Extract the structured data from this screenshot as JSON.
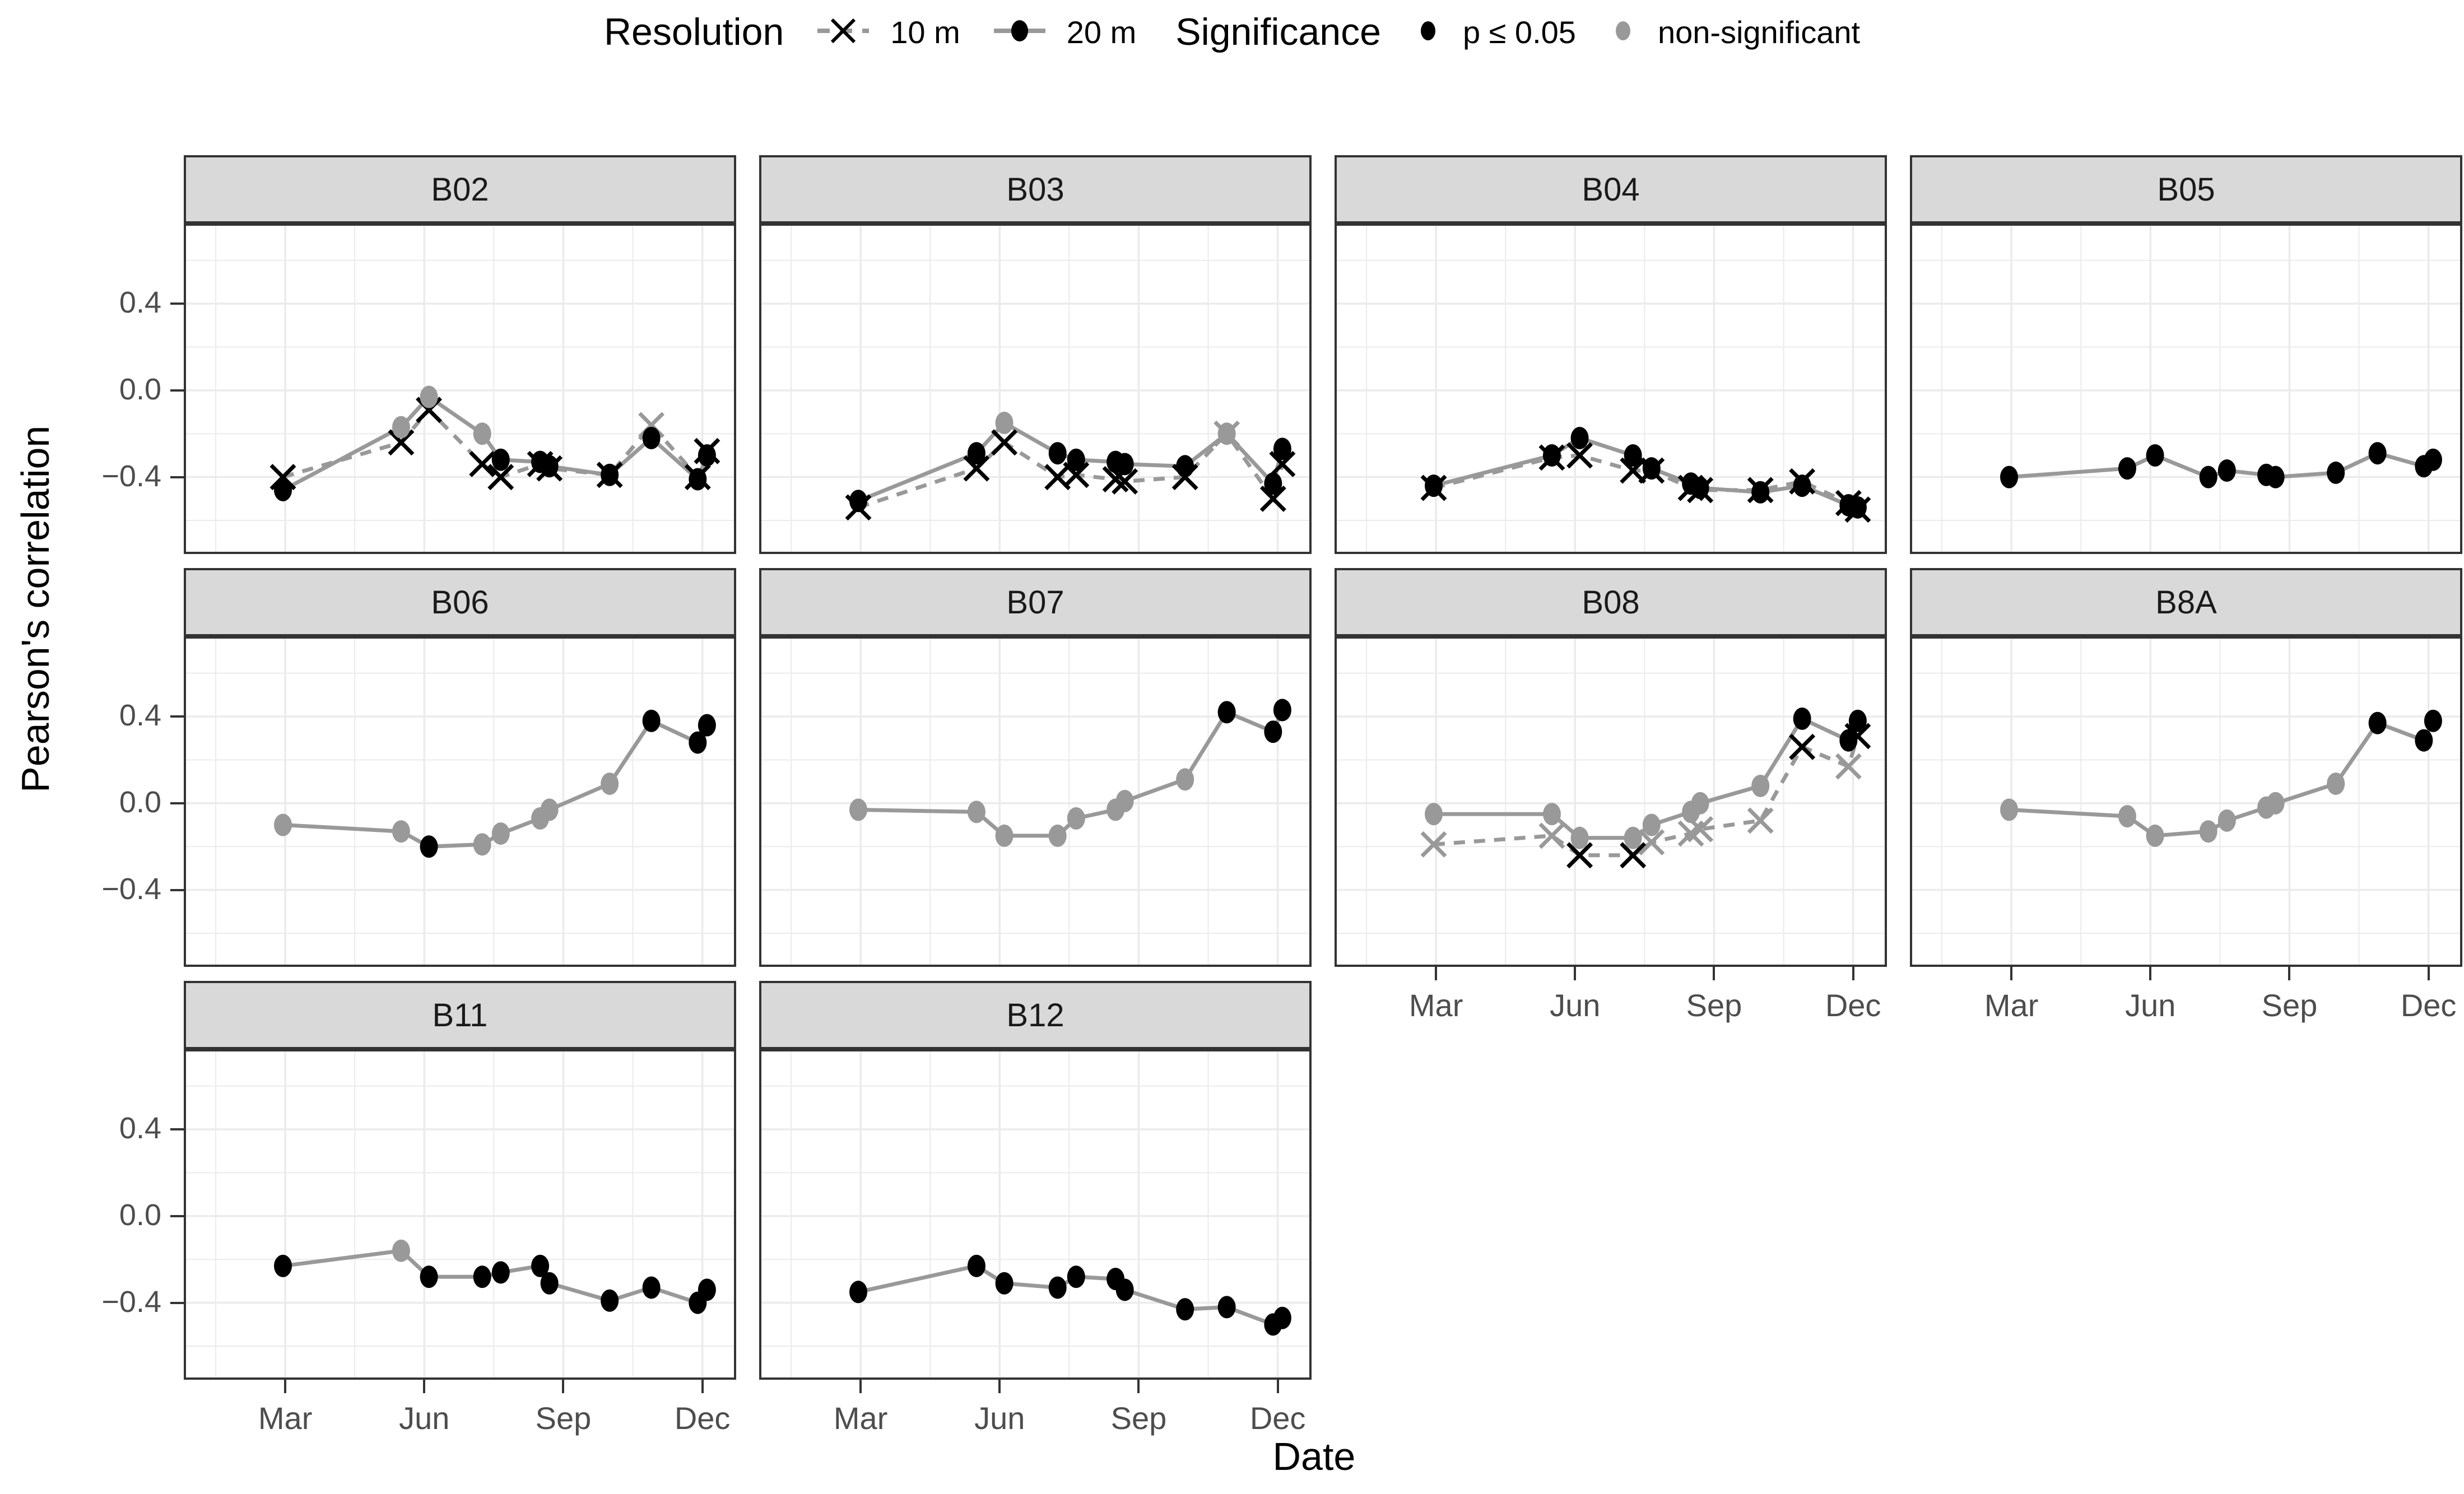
{
  "legend": {
    "resolution_title": "Resolution",
    "resolution_items": [
      {
        "label": "10 m",
        "linetype": "dashed",
        "marker": "x"
      },
      {
        "label": "20 m",
        "linetype": "solid",
        "marker": "dot"
      }
    ],
    "significance_title": "Significance",
    "significance_items": [
      {
        "label": "p ≤ 0.05",
        "color": "#000000"
      },
      {
        "label": "non-significant",
        "color": "#999999"
      }
    ]
  },
  "axes": {
    "x_title": "Date",
    "y_title": "Pearson's correlation",
    "x_ticks": [
      {
        "month": 3,
        "label": "Mar"
      },
      {
        "month": 6,
        "label": "Jun"
      },
      {
        "month": 9,
        "label": "Sep"
      },
      {
        "month": 12,
        "label": "Dec"
      }
    ],
    "y_ticks": [
      {
        "value": 0.4,
        "label": "0.4"
      },
      {
        "value": 0.0,
        "label": "0.0"
      },
      {
        "value": -0.4,
        "label": "−0.4"
      }
    ]
  },
  "colors": {
    "significant": "#000000",
    "non_significant": "#999999",
    "line": "#999999",
    "grid": "#ebebeb",
    "strip_fill": "#d9d9d9",
    "panel_border": "#333333",
    "tick_text": "#4d4d4d"
  },
  "chart_data": {
    "type": "line",
    "title": "",
    "xlabel": "Date",
    "ylabel": "Pearson's correlation",
    "xlim_months": [
      0.81,
      12.73
    ],
    "ylim": [
      -0.755,
      0.77
    ],
    "x_major_months": [
      3,
      6,
      9,
      12
    ],
    "x_minor_months": [
      1.5,
      4.5,
      7.5,
      10.5
    ],
    "y_major": [
      0.4,
      0.0,
      -0.4
    ],
    "y_minor": [
      0.6,
      0.2,
      -0.2,
      -0.6
    ],
    "grid": true,
    "legend_position": "top",
    "x_months": [
      2.95,
      5.5,
      6.1,
      7.25,
      7.65,
      8.5,
      8.7,
      10.0,
      10.9,
      11.9,
      12.1
    ],
    "facets": [
      {
        "label": "B02",
        "row": 0,
        "col": 0,
        "show_x_axis": false,
        "series": [
          {
            "name": "10 m",
            "linetype": "dashed",
            "marker": "x",
            "y": [
              -0.4,
              -0.24,
              -0.09,
              -0.34,
              -0.4,
              -0.34,
              -0.36,
              -0.39,
              -0.16,
              -0.4,
              -0.28
            ],
            "sig": [
              1,
              1,
              1,
              1,
              1,
              1,
              1,
              1,
              0,
              1,
              1
            ]
          },
          {
            "name": "20 m",
            "linetype": "solid",
            "marker": "dot",
            "y": [
              -0.46,
              -0.17,
              -0.03,
              -0.2,
              -0.32,
              -0.33,
              -0.35,
              -0.39,
              -0.22,
              -0.41,
              -0.3
            ],
            "sig": [
              1,
              0,
              0,
              0,
              1,
              1,
              1,
              1,
              1,
              1,
              1
            ]
          }
        ]
      },
      {
        "label": "B03",
        "row": 0,
        "col": 1,
        "show_x_axis": false,
        "series": [
          {
            "name": "10 m",
            "linetype": "dashed",
            "marker": "x",
            "y": [
              -0.54,
              -0.36,
              -0.24,
              -0.4,
              -0.39,
              -0.41,
              -0.42,
              -0.4,
              -0.2,
              -0.5,
              -0.34
            ],
            "sig": [
              1,
              1,
              1,
              1,
              1,
              1,
              1,
              1,
              0,
              1,
              1
            ]
          },
          {
            "name": "20 m",
            "linetype": "solid",
            "marker": "dot",
            "y": [
              -0.51,
              -0.29,
              -0.15,
              -0.29,
              -0.32,
              -0.33,
              -0.34,
              -0.35,
              -0.2,
              -0.43,
              -0.27
            ],
            "sig": [
              1,
              1,
              0,
              1,
              1,
              1,
              1,
              1,
              0,
              1,
              1
            ]
          }
        ]
      },
      {
        "label": "B04",
        "row": 0,
        "col": 2,
        "show_x_axis": false,
        "series": [
          {
            "name": "10 m",
            "linetype": "dashed",
            "marker": "x",
            "y": [
              -0.45,
              -0.31,
              -0.3,
              -0.37,
              -0.37,
              -0.45,
              -0.46,
              -0.46,
              -0.42,
              -0.52,
              -0.55
            ],
            "sig": [
              1,
              1,
              1,
              1,
              1,
              1,
              1,
              1,
              1,
              1,
              1
            ]
          },
          {
            "name": "20 m",
            "linetype": "solid",
            "marker": "dot",
            "y": [
              -0.44,
              -0.3,
              -0.22,
              -0.3,
              -0.36,
              -0.43,
              -0.45,
              -0.47,
              -0.44,
              -0.53,
              -0.54
            ],
            "sig": [
              1,
              1,
              1,
              1,
              1,
              1,
              1,
              1,
              1,
              1,
              1
            ]
          }
        ]
      },
      {
        "label": "B05",
        "row": 0,
        "col": 3,
        "show_x_axis": false,
        "series": [
          {
            "name": "20 m",
            "linetype": "solid",
            "marker": "dot",
            "y": [
              -0.4,
              -0.36,
              -0.3,
              -0.4,
              -0.37,
              -0.39,
              -0.4,
              -0.38,
              -0.29,
              -0.35,
              -0.32
            ],
            "sig": [
              1,
              1,
              1,
              1,
              1,
              1,
              1,
              1,
              1,
              1,
              1
            ]
          }
        ]
      },
      {
        "label": "B06",
        "row": 1,
        "col": 0,
        "show_x_axis": false,
        "series": [
          {
            "name": "20 m",
            "linetype": "solid",
            "marker": "dot",
            "y": [
              -0.1,
              -0.13,
              -0.2,
              -0.19,
              -0.14,
              -0.07,
              -0.03,
              0.09,
              0.38,
              0.28,
              0.36
            ],
            "sig": [
              0,
              0,
              1,
              0,
              0,
              0,
              0,
              0,
              1,
              1,
              1
            ]
          }
        ]
      },
      {
        "label": "B07",
        "row": 1,
        "col": 1,
        "show_x_axis": false,
        "series": [
          {
            "name": "20 m",
            "linetype": "solid",
            "marker": "dot",
            "y": [
              -0.03,
              -0.04,
              -0.15,
              -0.15,
              -0.07,
              -0.03,
              0.01,
              0.11,
              0.42,
              0.33,
              0.43
            ],
            "sig": [
              0,
              0,
              0,
              0,
              0,
              0,
              0,
              0,
              1,
              1,
              1
            ]
          }
        ]
      },
      {
        "label": "B08",
        "row": 1,
        "col": 2,
        "show_x_axis": true,
        "series": [
          {
            "name": "10 m",
            "linetype": "dashed",
            "marker": "x",
            "y": [
              -0.19,
              -0.15,
              -0.24,
              -0.24,
              -0.18,
              -0.14,
              -0.12,
              -0.08,
              0.26,
              0.17,
              0.31
            ],
            "sig": [
              0,
              0,
              1,
              1,
              0,
              0,
              0,
              0,
              1,
              0,
              1
            ]
          },
          {
            "name": "20 m",
            "linetype": "solid",
            "marker": "dot",
            "y": [
              -0.05,
              -0.05,
              -0.16,
              -0.16,
              -0.1,
              -0.04,
              0.0,
              0.08,
              0.39,
              0.29,
              0.38
            ],
            "sig": [
              0,
              0,
              0,
              0,
              0,
              0,
              0,
              0,
              1,
              1,
              1
            ]
          }
        ]
      },
      {
        "label": "B8A",
        "row": 1,
        "col": 3,
        "show_x_axis": true,
        "series": [
          {
            "name": "20 m",
            "linetype": "solid",
            "marker": "dot",
            "y": [
              -0.03,
              -0.06,
              -0.15,
              -0.13,
              -0.08,
              -0.02,
              0.0,
              0.09,
              0.37,
              0.29,
              0.38
            ],
            "sig": [
              0,
              0,
              0,
              0,
              0,
              0,
              0,
              0,
              1,
              1,
              1
            ]
          }
        ]
      },
      {
        "label": "B11",
        "row": 2,
        "col": 0,
        "show_x_axis": true,
        "series": [
          {
            "name": "20 m",
            "linetype": "solid",
            "marker": "dot",
            "y": [
              -0.23,
              -0.16,
              -0.28,
              -0.28,
              -0.26,
              -0.23,
              -0.31,
              -0.39,
              -0.33,
              -0.4,
              -0.34
            ],
            "sig": [
              1,
              0,
              1,
              1,
              1,
              1,
              1,
              1,
              1,
              1,
              1
            ]
          }
        ]
      },
      {
        "label": "B12",
        "row": 2,
        "col": 1,
        "show_x_axis": true,
        "series": [
          {
            "name": "20 m",
            "linetype": "solid",
            "marker": "dot",
            "y": [
              -0.35,
              -0.23,
              -0.31,
              -0.33,
              -0.28,
              -0.29,
              -0.34,
              -0.43,
              -0.42,
              -0.5,
              -0.47
            ],
            "sig": [
              1,
              1,
              1,
              1,
              1,
              1,
              1,
              1,
              1,
              1,
              1
            ]
          }
        ]
      }
    ]
  }
}
